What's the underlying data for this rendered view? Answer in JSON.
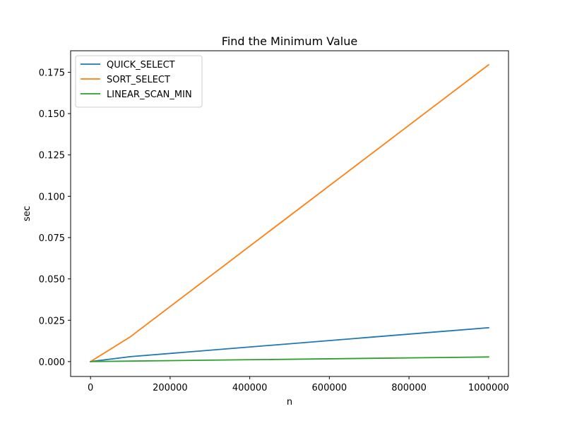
{
  "chart_data": {
    "type": "line",
    "title": "Find the Minimum Value",
    "xlabel": "n",
    "ylabel": "sec",
    "xlim": [
      -50000,
      1050000
    ],
    "ylim": [
      -0.009,
      0.188
    ],
    "xticks": [
      0,
      200000,
      400000,
      600000,
      800000,
      1000000
    ],
    "xtick_labels": [
      "0",
      "200000",
      "400000",
      "600000",
      "800000",
      "1000000"
    ],
    "yticks": [
      0.0,
      0.025,
      0.05,
      0.075,
      0.1,
      0.125,
      0.15,
      0.175
    ],
    "ytick_labels": [
      "0.000",
      "0.025",
      "0.050",
      "0.075",
      "0.100",
      "0.125",
      "0.150",
      "0.175"
    ],
    "grid": false,
    "legend_position": "top-left",
    "x": [
      10,
      100000,
      1000000
    ],
    "series": [
      {
        "name": "QUICK_SELECT",
        "color": "#1f77b4",
        "values": [
          0.0,
          0.003,
          0.0205
        ]
      },
      {
        "name": "SORT_SELECT",
        "color": "#ff7f0e",
        "values": [
          0.0,
          0.015,
          0.1795
        ]
      },
      {
        "name": "LINEAR_SCAN_MIN",
        "color": "#2ca02c",
        "values": [
          0.0,
          0.0003,
          0.0028
        ]
      }
    ]
  }
}
